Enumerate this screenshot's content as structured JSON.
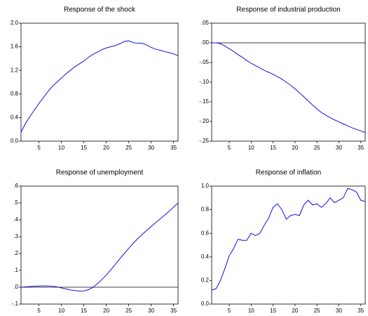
{
  "chart_data": [
    {
      "type": "line",
      "title": "Response of the shock",
      "color": "#1010e0",
      "x": [
        1,
        2,
        3,
        4,
        5,
        6,
        7,
        8,
        9,
        10,
        11,
        12,
        13,
        14,
        15,
        16,
        17,
        18,
        19,
        20,
        21,
        22,
        23,
        24,
        25,
        26,
        27,
        28,
        29,
        30,
        31,
        32,
        33,
        34,
        35,
        36
      ],
      "values": [
        0.15,
        0.3,
        0.42,
        0.53,
        0.64,
        0.74,
        0.84,
        0.93,
        1.0,
        1.07,
        1.14,
        1.2,
        1.26,
        1.31,
        1.36,
        1.42,
        1.47,
        1.51,
        1.55,
        1.58,
        1.6,
        1.62,
        1.65,
        1.69,
        1.7,
        1.67,
        1.66,
        1.66,
        1.63,
        1.59,
        1.56,
        1.54,
        1.52,
        1.5,
        1.48,
        1.45
      ],
      "xlim": [
        1,
        36
      ],
      "xticks": [
        5,
        10,
        15,
        20,
        25,
        30,
        35
      ],
      "ylim": [
        0,
        2
      ],
      "yticks": [
        {
          "value": 0,
          "label": "0.0"
        },
        {
          "value": 0.4,
          "label": "0.4"
        },
        {
          "value": 0.8,
          "label": "0.8"
        },
        {
          "value": 1.2,
          "label": "1.2"
        },
        {
          "value": 1.6,
          "label": "1.6"
        },
        {
          "value": 2,
          "label": "2.0"
        }
      ],
      "zero_line": false
    },
    {
      "type": "line",
      "title": "Response of industrial production",
      "color": "#1010e0",
      "x": [
        1,
        2,
        3,
        4,
        5,
        6,
        7,
        8,
        9,
        10,
        11,
        12,
        13,
        14,
        15,
        16,
        17,
        18,
        19,
        20,
        21,
        22,
        23,
        24,
        25,
        26,
        27,
        28,
        29,
        30,
        31,
        32,
        33,
        34,
        35,
        36
      ],
      "values": [
        0,
        0,
        -0.002,
        -0.008,
        -0.015,
        -0.022,
        -0.03,
        -0.037,
        -0.045,
        -0.052,
        -0.058,
        -0.064,
        -0.07,
        -0.075,
        -0.08,
        -0.086,
        -0.092,
        -0.1,
        -0.108,
        -0.117,
        -0.127,
        -0.137,
        -0.148,
        -0.158,
        -0.168,
        -0.177,
        -0.184,
        -0.19,
        -0.196,
        -0.201,
        -0.206,
        -0.211,
        -0.216,
        -0.22,
        -0.224,
        -0.228
      ],
      "xlim": [
        1,
        36
      ],
      "xticks": [
        5,
        10,
        15,
        20,
        25,
        30,
        35
      ],
      "ylim": [
        -0.25,
        0.05
      ],
      "yticks": [
        {
          "value": -0.25,
          "label": "-.25"
        },
        {
          "value": -0.2,
          "label": "-.20"
        },
        {
          "value": -0.15,
          "label": "-.15"
        },
        {
          "value": -0.1,
          "label": "-.10"
        },
        {
          "value": -0.05,
          "label": "-.05"
        },
        {
          "value": 0,
          "label": ".00"
        },
        {
          "value": 0.05,
          "label": ".05"
        }
      ],
      "zero_line": true
    },
    {
      "type": "line",
      "title": "Response of unemployment",
      "color": "#1010e0",
      "x": [
        1,
        2,
        3,
        4,
        5,
        6,
        7,
        8,
        9,
        10,
        11,
        12,
        13,
        14,
        15,
        16,
        17,
        18,
        19,
        20,
        21,
        22,
        23,
        24,
        25,
        26,
        27,
        28,
        29,
        30,
        31,
        32,
        33,
        34,
        35,
        36
      ],
      "values": [
        0,
        0.002,
        0.004,
        0.006,
        0.007,
        0.008,
        0.008,
        0.006,
        0.002,
        -0.004,
        -0.01,
        -0.016,
        -0.02,
        -0.023,
        -0.022,
        -0.015,
        -0.002,
        0.02,
        0.045,
        0.072,
        0.103,
        0.135,
        0.168,
        0.2,
        0.23,
        0.26,
        0.288,
        0.313,
        0.337,
        0.36,
        0.383,
        0.405,
        0.427,
        0.45,
        0.475,
        0.5
      ],
      "xlim": [
        1,
        36
      ],
      "xticks": [
        5,
        10,
        15,
        20,
        25,
        30,
        35
      ],
      "ylim": [
        -0.1,
        0.6
      ],
      "yticks": [
        {
          "value": -0.1,
          "label": "-.1"
        },
        {
          "value": 0,
          "label": ".0"
        },
        {
          "value": 0.1,
          "label": ".1"
        },
        {
          "value": 0.2,
          "label": ".2"
        },
        {
          "value": 0.3,
          "label": ".3"
        },
        {
          "value": 0.4,
          "label": ".4"
        },
        {
          "value": 0.5,
          "label": ".5"
        },
        {
          "value": 0.6,
          "label": ".6"
        }
      ],
      "zero_line": true
    },
    {
      "type": "line",
      "title": "Response of inflation",
      "color": "#1010e0",
      "x": [
        1,
        2,
        3,
        4,
        5,
        6,
        7,
        8,
        9,
        10,
        11,
        12,
        13,
        14,
        15,
        16,
        17,
        18,
        19,
        20,
        21,
        22,
        23,
        24,
        25,
        26,
        27,
        28,
        29,
        30,
        31,
        32,
        33,
        34,
        35,
        36
      ],
      "values": [
        0.12,
        0.13,
        0.2,
        0.3,
        0.41,
        0.47,
        0.55,
        0.54,
        0.54,
        0.6,
        0.58,
        0.6,
        0.67,
        0.73,
        0.82,
        0.85,
        0.8,
        0.72,
        0.75,
        0.76,
        0.75,
        0.84,
        0.88,
        0.84,
        0.85,
        0.82,
        0.85,
        0.9,
        0.86,
        0.88,
        0.9,
        0.98,
        0.97,
        0.95,
        0.88,
        0.87
      ],
      "xlim": [
        1,
        36
      ],
      "xticks": [
        5,
        10,
        15,
        20,
        25,
        30,
        35
      ],
      "ylim": [
        0,
        1
      ],
      "yticks": [
        {
          "value": 0,
          "label": "0.0"
        },
        {
          "value": 0.2,
          "label": "0.2"
        },
        {
          "value": 0.4,
          "label": "0.4"
        },
        {
          "value": 0.6,
          "label": "0.6"
        },
        {
          "value": 0.8,
          "label": "0.8"
        },
        {
          "value": 1,
          "label": "1.0"
        }
      ],
      "zero_line": false
    }
  ]
}
